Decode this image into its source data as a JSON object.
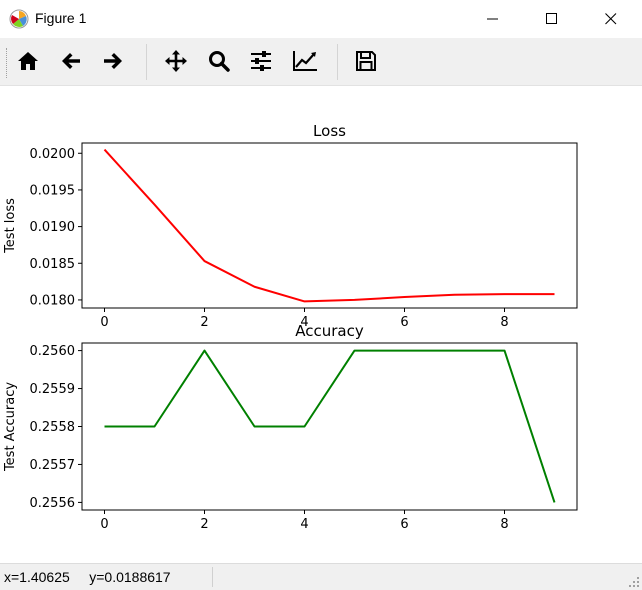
{
  "window": {
    "title": "Figure 1",
    "buttons": [
      "minimize",
      "maximize",
      "close"
    ]
  },
  "toolbar": {
    "buttons": [
      {
        "name": "home",
        "icon": "home-icon"
      },
      {
        "name": "back",
        "icon": "arrow-left-icon"
      },
      {
        "name": "forward",
        "icon": "arrow-right-icon"
      },
      {
        "name": "pan",
        "icon": "move-icon"
      },
      {
        "name": "zoom",
        "icon": "zoom-icon"
      },
      {
        "name": "subplots",
        "icon": "sliders-icon"
      },
      {
        "name": "customize",
        "icon": "line-chart-icon"
      },
      {
        "name": "save",
        "icon": "save-icon"
      }
    ]
  },
  "status": {
    "coords": "x=1.40625     y=0.0188617"
  },
  "colors": {
    "loss_line": "#ff0000",
    "accuracy_line": "#008000",
    "toolbar_bg": "#f0f0f0"
  },
  "chart_data": [
    {
      "type": "line",
      "title": "Loss",
      "xlabel": "",
      "ylabel": "Test loss",
      "x": [
        0,
        1,
        2,
        3,
        4,
        5,
        6,
        7,
        8,
        9
      ],
      "series": [
        {
          "color": "#ff0000",
          "values": [
            0.02005,
            0.0193,
            0.01853,
            0.01818,
            0.01798,
            0.018,
            0.01804,
            0.01807,
            0.01808,
            0.01808
          ]
        }
      ],
      "xlim": [
        -0.45,
        9.45
      ],
      "ylim": [
        0.01789,
        0.02014
      ],
      "xticks": [
        0,
        2,
        4,
        6,
        8
      ],
      "xtick_labels": [
        "0",
        "2",
        "4",
        "6",
        "8"
      ],
      "yticks": [
        0.018,
        0.0185,
        0.019,
        0.0195,
        0.02
      ],
      "ytick_labels": [
        "0.0180",
        "0.0185",
        "0.0190",
        "0.0195",
        "0.0200"
      ],
      "grid": false
    },
    {
      "type": "line",
      "title": "Accuracy",
      "xlabel": "",
      "ylabel": "Test Accuracy",
      "x": [
        0,
        1,
        2,
        3,
        4,
        5,
        6,
        7,
        8,
        9
      ],
      "series": [
        {
          "color": "#008000",
          "values": [
            0.2558,
            0.2558,
            0.256,
            0.2558,
            0.2558,
            0.256,
            0.256,
            0.256,
            0.256,
            0.2556
          ]
        }
      ],
      "xlim": [
        -0.45,
        9.45
      ],
      "ylim": [
        0.25558,
        0.25602
      ],
      "xticks": [
        0,
        2,
        4,
        6,
        8
      ],
      "xtick_labels": [
        "0",
        "2",
        "4",
        "6",
        "8"
      ],
      "yticks": [
        0.2556,
        0.2557,
        0.2558,
        0.2559,
        0.256
      ],
      "ytick_labels": [
        "0.2556",
        "0.2557",
        "0.2558",
        "0.2559",
        "0.2560"
      ],
      "grid": false
    }
  ]
}
